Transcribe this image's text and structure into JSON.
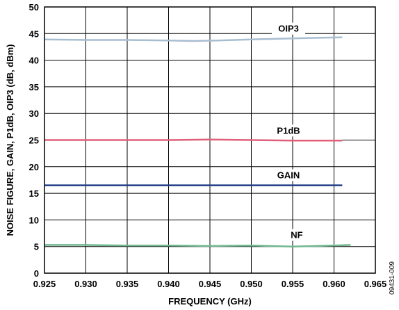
{
  "chart_data": {
    "type": "line",
    "xlabel": "FREQUENCY (GHz)",
    "ylabel": "NOISE FIGURE, GAIN, P1dB, OIP3 (dB, dBm)",
    "xlim": [
      0.925,
      0.965
    ],
    "ylim": [
      0,
      50
    ],
    "x_ticks": [
      "0.925",
      "0.930",
      "0.935",
      "0.940",
      "0.945",
      "0.950",
      "0.955",
      "0.960",
      "0.965"
    ],
    "y_ticks": [
      "0",
      "5",
      "10",
      "15",
      "20",
      "25",
      "30",
      "35",
      "40",
      "45",
      "50"
    ],
    "grid": true,
    "figure_id": "09431-009",
    "series": [
      {
        "name": "OIP3",
        "color": "#a7bdd0",
        "x": [
          0.925,
          0.93,
          0.935,
          0.94,
          0.943,
          0.946,
          0.95,
          0.955,
          0.958,
          0.961
        ],
        "y": [
          43.9,
          43.8,
          43.8,
          43.7,
          43.6,
          43.7,
          43.9,
          44.1,
          44.2,
          44.3
        ]
      },
      {
        "name": "P1dB",
        "color": "#e06079",
        "x": [
          0.925,
          0.93,
          0.935,
          0.94,
          0.945,
          0.95,
          0.955,
          0.96,
          0.961
        ],
        "y": [
          25.0,
          25.0,
          25.0,
          25.0,
          25.1,
          25.0,
          24.9,
          24.9,
          24.9
        ]
      },
      {
        "name": "GAIN",
        "color": "#1f3e86",
        "x": [
          0.925,
          0.93,
          0.935,
          0.94,
          0.945,
          0.95,
          0.955,
          0.96,
          0.961
        ],
        "y": [
          16.5,
          16.5,
          16.5,
          16.5,
          16.5,
          16.5,
          16.5,
          16.5,
          16.5
        ]
      },
      {
        "name": "NF",
        "color": "#70b890",
        "x": [
          0.925,
          0.93,
          0.935,
          0.94,
          0.945,
          0.95,
          0.955,
          0.96,
          0.962
        ],
        "y": [
          5.3,
          5.3,
          5.2,
          5.2,
          5.1,
          5.2,
          5.0,
          5.2,
          5.3
        ]
      }
    ]
  }
}
